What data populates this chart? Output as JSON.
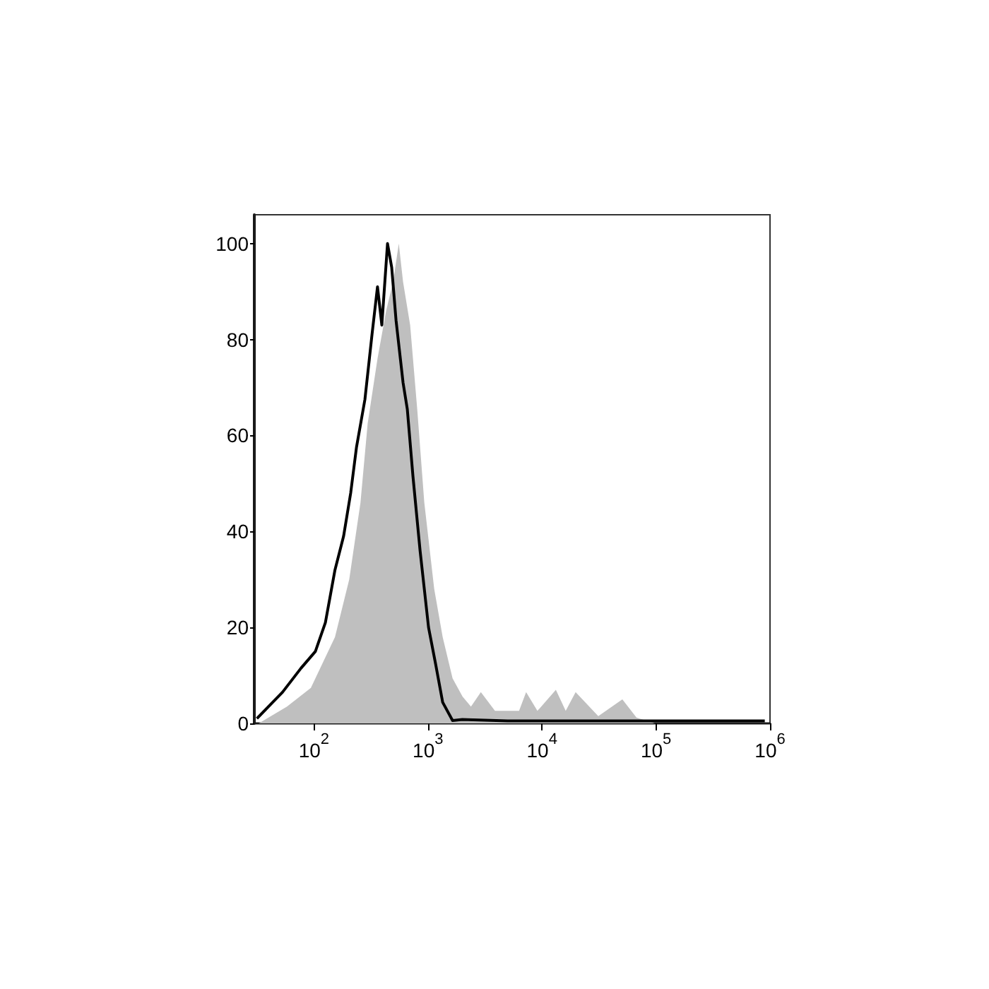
{
  "chart_data": {
    "type": "line",
    "xlim": [
      30,
      1000000
    ],
    "ylim": [
      0,
      106
    ],
    "log": "x",
    "grid": false,
    "marker": "none",
    "line_style": "solid",
    "xticks": [
      {
        "value": 100,
        "label": "10$^{2}$"
      },
      {
        "value": 1000,
        "label": "10$^{3}$"
      },
      {
        "value": 10000,
        "label": "10$^{4}$"
      },
      {
        "value": 100000,
        "label": "10$^{5}$"
      },
      {
        "value": 1000000,
        "label": "10$^{6}$"
      }
    ],
    "yticks": [
      0,
      20,
      40,
      60,
      80,
      100
    ],
    "series": [
      {
        "type": "area",
        "color": "#bfbfbf",
        "x": [
          30,
          32.8,
          58,
          94,
          153,
          204,
          256,
          296,
          361,
          430,
          495,
          555,
          605,
          698,
          805,
          929,
          1135,
          1346,
          1644,
          2010,
          2384,
          2911,
          3873,
          6295,
          7261,
          9120,
          13240,
          16150,
          19730,
          31190,
          50700,
          67450,
          97700,
          1000000
        ],
        "values": [
          0,
          0,
          3.5,
          7.4,
          18,
          30,
          46,
          62.5,
          76,
          86,
          92,
          100,
          92,
          83,
          65.5,
          46,
          28,
          18,
          9.4,
          5.6,
          3.5,
          6.5,
          2.6,
          2.6,
          6.5,
          2.6,
          7,
          2.6,
          6.5,
          1.5,
          5,
          1.2,
          0,
          0
        ]
      },
      {
        "color": "#000000",
        "x": [
          31.6,
          40,
          53,
          77,
          103,
          126,
          153,
          182,
          210,
          236,
          280,
          323,
          361,
          394,
          442,
          481,
          525,
          605,
          659,
          738,
          853,
          1012,
          1167,
          1346,
          1644,
          2000,
          5000,
          900000
        ],
        "values": [
          1,
          3.5,
          6.5,
          11.5,
          15,
          21,
          32,
          39,
          48,
          57.5,
          67.5,
          81,
          91,
          83,
          100,
          95,
          84,
          71,
          65.5,
          51.6,
          36,
          20,
          12.4,
          4.4,
          0.6,
          0.8,
          0.5,
          0.5
        ]
      }
    ]
  }
}
